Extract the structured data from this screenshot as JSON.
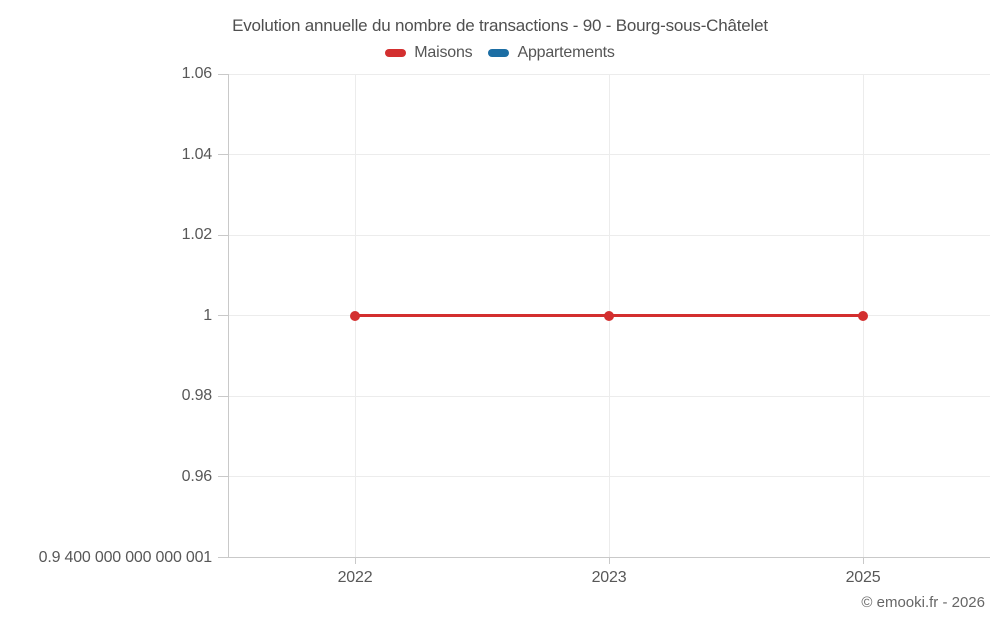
{
  "chart_data": {
    "type": "line",
    "title": "Evolution annuelle du nombre de transactions - 90 - Bourg-sous-Châtelet",
    "categories": [
      "2022",
      "2023",
      "2025"
    ],
    "series": [
      {
        "name": "Maisons",
        "color": "#d32f2f",
        "values": [
          1,
          1,
          1
        ]
      },
      {
        "name": "Appartements",
        "color": "#1c6ea4",
        "values": []
      }
    ],
    "yticks": [
      {
        "value": 0.94,
        "label": "0.9 400 000 000 000 001"
      },
      {
        "value": 0.96,
        "label": "0.96"
      },
      {
        "value": 0.98,
        "label": "0.98"
      },
      {
        "value": 1,
        "label": "1"
      },
      {
        "value": 1.02,
        "label": "1.02"
      },
      {
        "value": 1.04,
        "label": "1.04"
      },
      {
        "value": 1.06,
        "label": "1.06"
      }
    ],
    "ylim": [
      0.94,
      1.06
    ],
    "grid": true,
    "legend_position": "top",
    "credit": "© emooki.fr - 2026"
  }
}
